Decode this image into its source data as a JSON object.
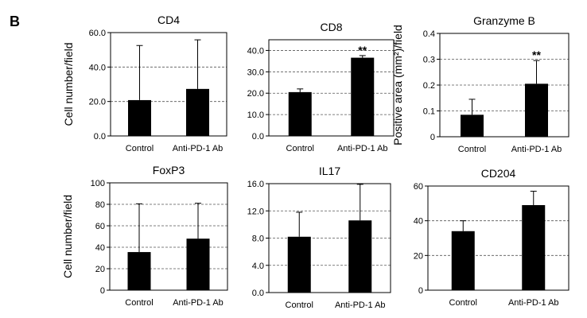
{
  "figure": {
    "panel_label": "B"
  },
  "chart_data": [
    {
      "type": "bar",
      "title": "CD4",
      "ylabel": "Cell number/field",
      "categories": [
        "Control",
        "Anti-PD-1 Ab"
      ],
      "values": [
        20.8,
        27.3
      ],
      "error_upper": [
        52.5,
        55.8
      ],
      "significance": [
        "",
        ""
      ],
      "ylim": [
        0,
        60
      ],
      "yticks": [
        "0.0",
        "20.0",
        "40.0",
        "60.0"
      ],
      "grid": "dashed-horizontal",
      "bar_color": "#000000"
    },
    {
      "type": "bar",
      "title": "CD8",
      "ylabel": "",
      "categories": [
        "Control",
        "Anti-PD-1 Ab"
      ],
      "values": [
        20.5,
        36.6
      ],
      "error_upper": [
        22.0,
        37.6
      ],
      "significance": [
        "",
        "**"
      ],
      "ylim": [
        0,
        45
      ],
      "yticks": [
        "0.0",
        "10.0",
        "20.0",
        "30.0",
        "40.0"
      ],
      "grid": "dashed-horizontal",
      "bar_color": "#000000"
    },
    {
      "type": "bar",
      "title": "Granzyme B",
      "ylabel": "Positive area (mm²)/field",
      "categories": [
        "Control",
        "Anti-PD-1 Ab"
      ],
      "values": [
        0.085,
        0.205
      ],
      "error_upper": [
        0.145,
        0.295
      ],
      "significance": [
        "",
        "**"
      ],
      "ylim": [
        0,
        0.4
      ],
      "yticks": [
        "0",
        "0.1",
        "0.2",
        "0.3",
        "0.4"
      ],
      "grid": "dashed-horizontal",
      "bar_color": "#000000"
    },
    {
      "type": "bar",
      "title": "FoxP3",
      "ylabel": "Cell number/field",
      "categories": [
        "Control",
        "Anti-PD-1 Ab"
      ],
      "values": [
        35.5,
        48.0
      ],
      "error_upper": [
        80.5,
        81.0
      ],
      "significance": [
        "",
        ""
      ],
      "ylim": [
        0,
        100
      ],
      "yticks": [
        "0",
        "20",
        "40",
        "60",
        "80",
        "100"
      ],
      "grid": "dashed-horizontal",
      "bar_color": "#000000"
    },
    {
      "type": "bar",
      "title": "IL17",
      "ylabel": "",
      "categories": [
        "Control",
        "Anti-PD-1 Ab"
      ],
      "values": [
        8.2,
        10.6
      ],
      "error_upper": [
        11.8,
        15.9
      ],
      "significance": [
        "",
        ""
      ],
      "ylim": [
        0,
        16
      ],
      "yticks": [
        "0.0",
        "4.0",
        "8.0",
        "12.0",
        "16.0"
      ],
      "grid": "dashed-horizontal",
      "bar_color": "#000000"
    },
    {
      "type": "bar",
      "title": "CD204",
      "ylabel": "",
      "categories": [
        "Control",
        "Anti-PD-1 Ab"
      ],
      "values": [
        34.0,
        49.0
      ],
      "error_upper": [
        40.0,
        57.0
      ],
      "significance": [
        "",
        ""
      ],
      "ylim": [
        0,
        60
      ],
      "yticks": [
        "0",
        "20",
        "40",
        "60"
      ],
      "grid": "dashed-horizontal",
      "bar_color": "#000000"
    }
  ]
}
